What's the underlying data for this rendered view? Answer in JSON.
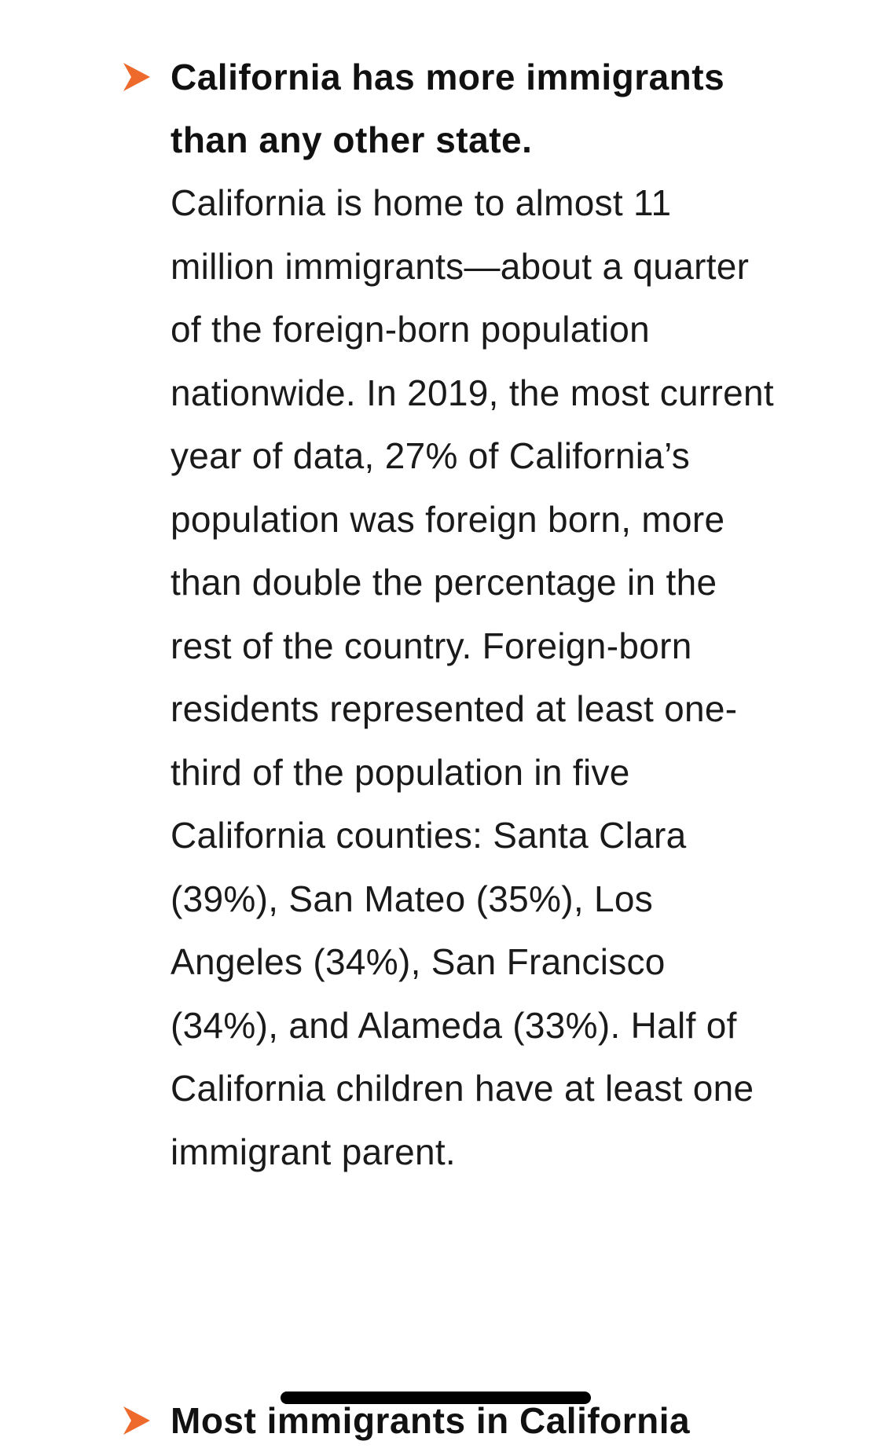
{
  "colors": {
    "accent": "#EE6A2C",
    "text": "#111111",
    "background": "#FFFFFF",
    "home_indicator": "#000000"
  },
  "points": [
    {
      "icon": "chevron-right-icon",
      "heading": "California has more immigrants than any other state.",
      "body": "California is home to almost 11 million immigrants—about a quarter of the foreign-born population nationwide. In 2019, the most current year of data, 27% of California’s population was foreign born, more than double the percentage in the rest of the country. Foreign-born residents represented at least one-third of the population in five California counties: Santa Clara (39%), San Mateo (35%), Los Angeles (34%), San Francisco (34%), and Alameda (33%). Half of California children have at least one immigrant parent."
    },
    {
      "icon": "chevron-right-icon",
      "heading": "Most immigrants in California"
    }
  ]
}
